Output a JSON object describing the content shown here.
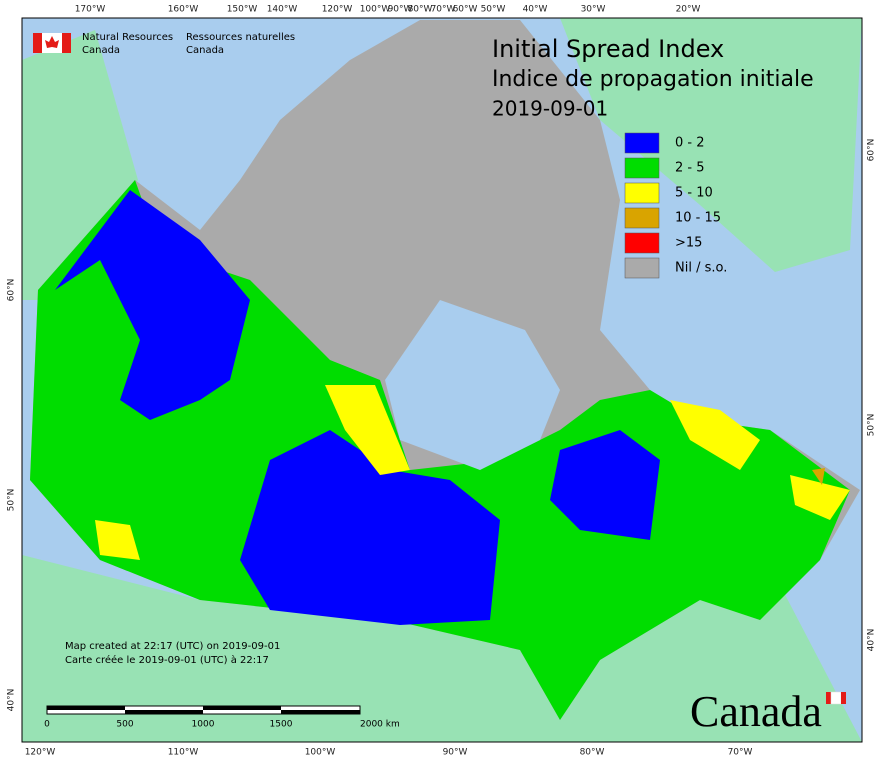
{
  "header": {
    "title": "Initial Spread Index",
    "subtitle": "Indice de propagation initiale",
    "date": "2019-09-01"
  },
  "agency": {
    "en_name": "Natural Resources",
    "en_sub": "Canada",
    "fr_name": "Ressources naturelles",
    "fr_sub": "Canada"
  },
  "legend": [
    {
      "label": "0 - 2",
      "color": "#0000ff"
    },
    {
      "label": "2 - 5",
      "color": "#00dd00"
    },
    {
      "label": "5 - 10",
      "color": "#ffff00"
    },
    {
      "label": "10 - 15",
      "color": "#d9a400"
    },
    {
      "label": ">15",
      "color": "#ff0000"
    },
    {
      "label": "Nil / s.o.",
      "color": "#aaaaaa"
    }
  ],
  "graticule": {
    "top": [
      "170°W",
      "160°W",
      "150°W",
      "140°W",
      "120°W",
      "100°W",
      "90°W",
      "80°W",
      "70°W",
      "60°W",
      "50°W",
      "40°W",
      "30°W",
      "20°W"
    ],
    "bottom": [
      "120°W",
      "110°W",
      "100°W",
      "90°W",
      "80°W",
      "70°W"
    ],
    "left": [
      "60°N",
      "50°N",
      "40°N"
    ],
    "right": [
      "60°N",
      "50°N",
      "40°N"
    ]
  },
  "scale_bar": {
    "labels": [
      "0",
      "500",
      "1000",
      "1500",
      "2000 km"
    ]
  },
  "notes": [
    "Map created at 22:17 (UTC) on 2019-09-01",
    "Carte créée le 2019-09-01 (UTC) à 22:17"
  ],
  "wordmark": "Canada"
}
